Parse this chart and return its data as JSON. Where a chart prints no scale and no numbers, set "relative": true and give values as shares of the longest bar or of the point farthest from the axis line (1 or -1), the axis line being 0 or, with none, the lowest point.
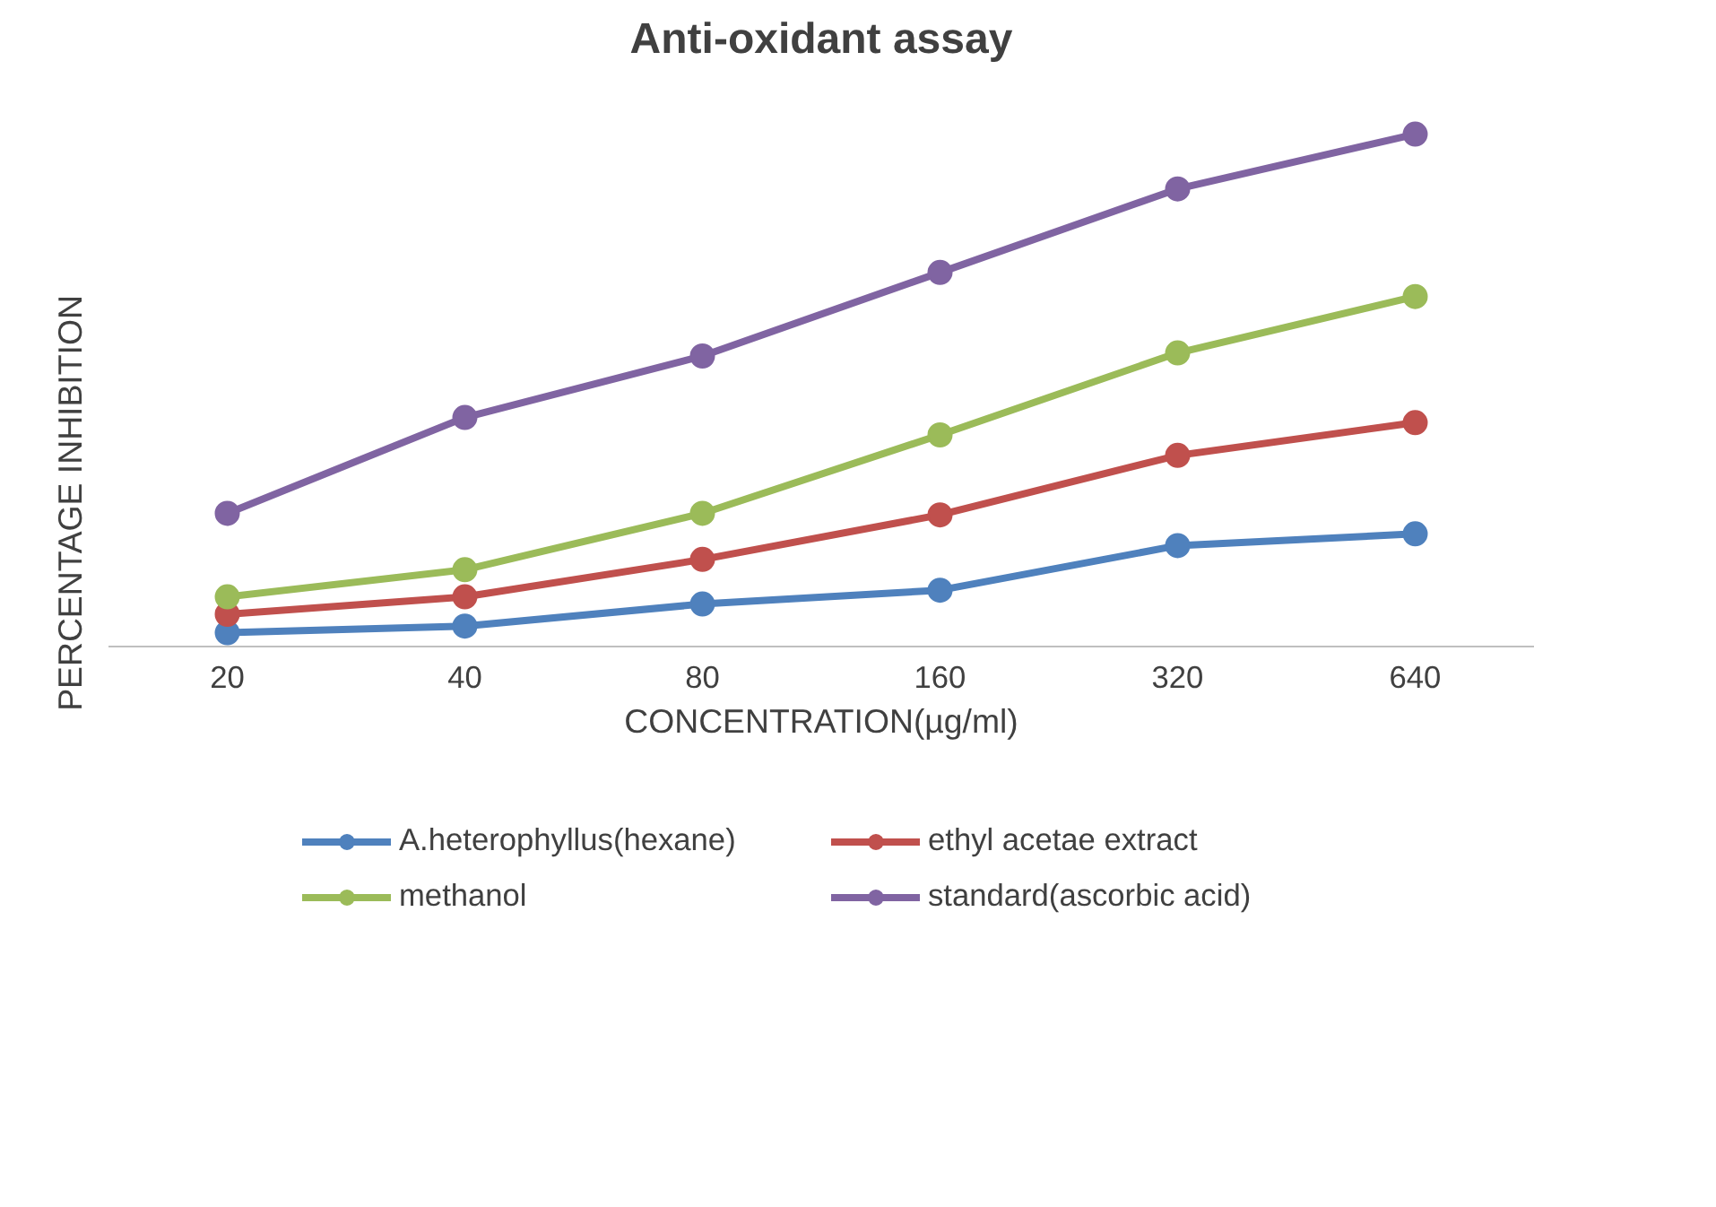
{
  "chart_data": {
    "type": "line",
    "title": "Anti-oxidant assay",
    "xlabel": "CONCENTRATION(µg/ml)",
    "ylabel": "PERCENTAGE INHIBITION",
    "relative": true,
    "categories": [
      "20",
      "40",
      "80",
      "160",
      "320",
      "640"
    ],
    "marker": "circle",
    "legend": "bottom",
    "grid": false,
    "series": [
      {
        "name": "A.heterophyllus(hexane)",
        "color": "#4f81bd",
        "values": [
          0.027,
          0.04,
          0.083,
          0.11,
          0.197,
          0.22
        ]
      },
      {
        "name": "ethyl acetae extract",
        "color": "#c0504d",
        "values": [
          0.063,
          0.097,
          0.17,
          0.257,
          0.373,
          0.437
        ]
      },
      {
        "name": "methanol",
        "color": "#9bbb59",
        "values": [
          0.097,
          0.15,
          0.26,
          0.413,
          0.573,
          0.683
        ]
      },
      {
        "name": "standard(ascorbic acid)",
        "color": "#8064a2",
        "values": [
          0.26,
          0.447,
          0.567,
          0.73,
          0.893,
          1.0
        ]
      }
    ]
  }
}
